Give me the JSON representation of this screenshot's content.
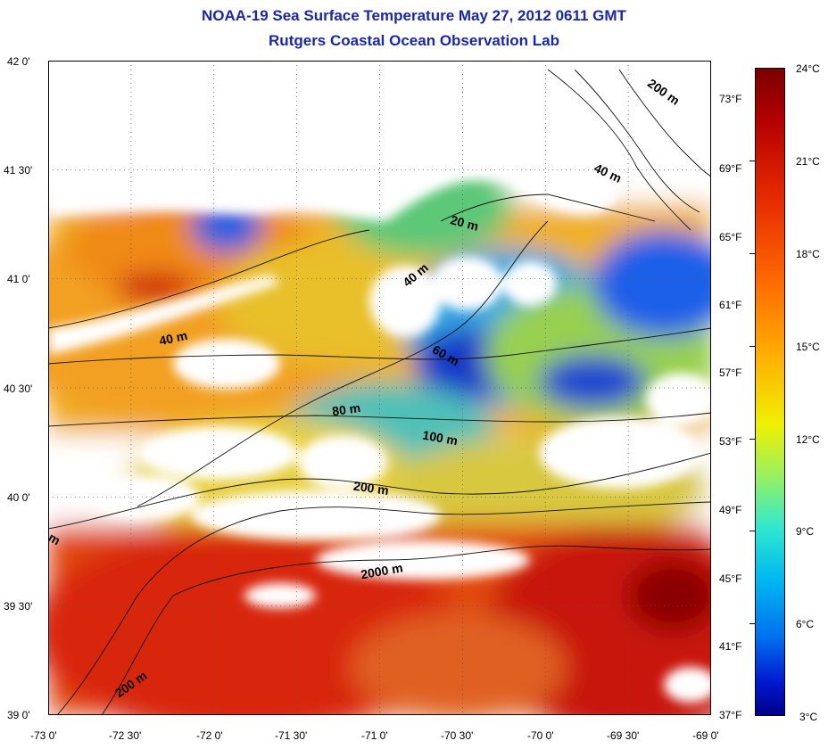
{
  "title": {
    "line1": "NOAA-19 Sea Surface Temperature May 27, 2012 0611 GMT",
    "line2": "Rutgers Coastal Ocean Observation Lab"
  },
  "axes": {
    "lat_ticks": [
      "42 0'",
      "41 30'",
      "41 0'",
      "40 30'",
      "40 0'",
      "39 30'",
      "39 0'"
    ],
    "lon_ticks": [
      "-73 0'",
      "-72 30'",
      "-72 0'",
      "-71 30'",
      "-71 0'",
      "-70 30'",
      "-70 0'",
      "-69 30'",
      "-69 0'"
    ],
    "fahrenheit_ticks": [
      "73°F",
      "69°F",
      "65°F",
      "61°F",
      "57°F",
      "53°F",
      "49°F",
      "45°F",
      "41°F",
      "37°F"
    ]
  },
  "colorbar": {
    "labels": [
      "24°C",
      "21°C",
      "18°C",
      "15°C",
      "12°C",
      "9°C",
      "6°C",
      "3°C"
    ],
    "min_c": 3,
    "max_c": 24
  },
  "contour_labels": [
    "200 m",
    "40 m",
    "20 m",
    "40 m",
    "40 m",
    "60 m",
    "80 m",
    "100 m",
    "200 m",
    "2000 m",
    "200 m",
    "m"
  ],
  "colors": {
    "title": "#1a27a8",
    "warm": "#e03a10",
    "cool": "#1040e0",
    "cloud_mask": "#ffffff"
  }
}
